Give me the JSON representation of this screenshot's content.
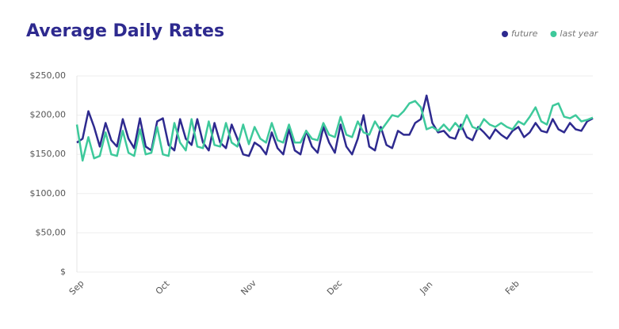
{
  "chart_data": {
    "type": "line",
    "title": "Average Daily Rates",
    "categories": [
      "Sep",
      null,
      null,
      null,
      null,
      null,
      null,
      null,
      null,
      null,
      null,
      null,
      null,
      null,
      null,
      "Oct",
      null,
      null,
      null,
      null,
      null,
      null,
      null,
      null,
      null,
      null,
      null,
      null,
      null,
      null,
      "Nov",
      null,
      null,
      null,
      null,
      null,
      null,
      null,
      null,
      null,
      null,
      null,
      null,
      null,
      null,
      "Dec",
      null,
      null,
      null,
      null,
      null,
      null,
      null,
      null,
      null,
      null,
      null,
      null,
      null,
      null,
      null,
      "Jan",
      null,
      null,
      null,
      null,
      null,
      null,
      null,
      null,
      null,
      null,
      null,
      null,
      null,
      null,
      "Feb",
      null,
      null,
      null,
      null,
      null,
      null,
      null,
      null,
      null,
      null,
      null,
      null,
      null,
      null
    ],
    "series": [
      {
        "name": "future",
        "color": "#2e2a8f",
        "values": [
          165,
          170,
          205,
          185,
          160,
          190,
          168,
          160,
          195,
          170,
          158,
          196,
          160,
          155,
          192,
          196,
          162,
          155,
          195,
          170,
          162,
          195,
          165,
          155,
          190,
          165,
          158,
          188,
          170,
          150,
          148,
          165,
          160,
          150,
          178,
          158,
          150,
          182,
          155,
          150,
          180,
          160,
          152,
          185,
          165,
          152,
          188,
          160,
          150,
          170,
          200,
          160,
          155,
          185,
          162,
          158,
          180,
          175,
          175,
          190,
          195,
          225,
          190,
          178,
          180,
          172,
          170,
          188,
          172,
          168,
          185,
          178,
          170,
          182,
          175,
          170,
          180,
          185,
          172,
          178,
          190,
          180,
          178,
          195,
          182,
          178,
          190,
          182,
          180,
          192,
          196
        ]
      },
      {
        "name": "last year",
        "color": "#3ec99b",
        "values": [
          188,
          142,
          172,
          145,
          148,
          178,
          150,
          148,
          180,
          152,
          148,
          182,
          150,
          152,
          185,
          150,
          148,
          190,
          165,
          155,
          195,
          160,
          158,
          192,
          162,
          160,
          190,
          165,
          160,
          188,
          163,
          185,
          170,
          165,
          190,
          168,
          165,
          188,
          165,
          165,
          180,
          170,
          168,
          190,
          175,
          172,
          198,
          175,
          172,
          192,
          178,
          175,
          192,
          180,
          190,
          200,
          198,
          205,
          215,
          218,
          210,
          182,
          185,
          180,
          188,
          180,
          190,
          182,
          200,
          185,
          182,
          195,
          188,
          185,
          190,
          185,
          182,
          192,
          188,
          198,
          210,
          192,
          188,
          212,
          215,
          198,
          196,
          200,
          192,
          194,
          197
        ]
      }
    ],
    "ylim": [
      0,
      250
    ],
    "yticks": [
      {
        "value": 0,
        "label": "$"
      },
      {
        "value": 50,
        "label": "$50,00"
      },
      {
        "value": 100,
        "label": "$100,00"
      },
      {
        "value": 150,
        "label": "$150,00"
      },
      {
        "value": 200,
        "label": "$200,00"
      },
      {
        "value": 250,
        "label": "$250,00"
      }
    ],
    "grid": true,
    "legend": "top-right"
  }
}
